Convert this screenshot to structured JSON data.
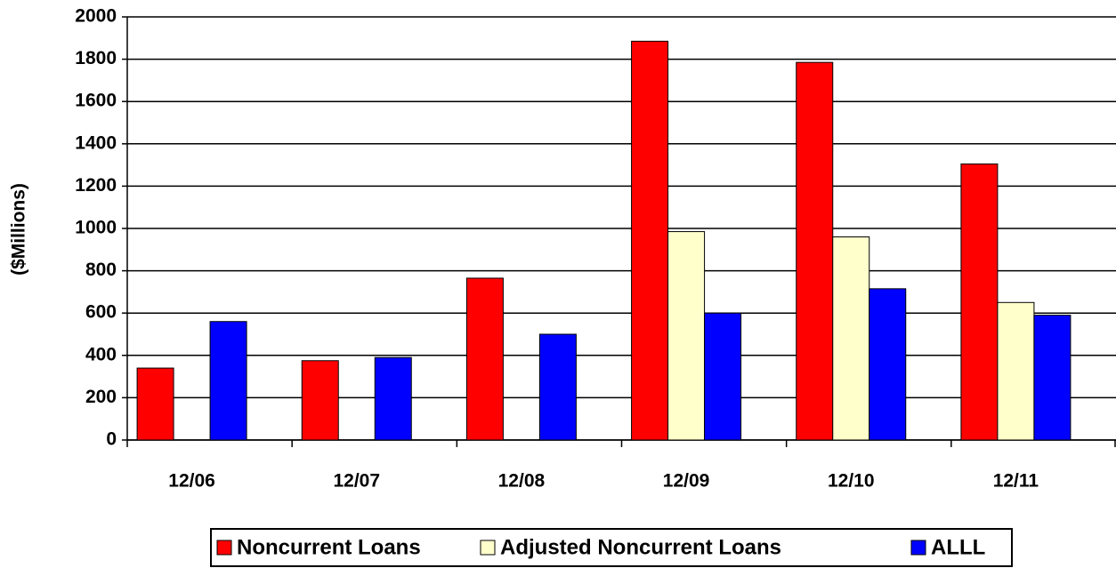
{
  "chart_data": {
    "type": "bar",
    "y_label": "($Millions)",
    "categories": [
      "12/06",
      "12/07",
      "12/08",
      "12/09",
      "12/10",
      "12/11"
    ],
    "series": [
      {
        "name": "Noncurrent Loans",
        "color": "#ff0000",
        "values": [
          340,
          375,
          765,
          1885,
          1785,
          1305
        ]
      },
      {
        "name": "Adjusted Noncurrent Loans",
        "color": "#ffffcc",
        "values": [
          null,
          null,
          null,
          985,
          960,
          650
        ]
      },
      {
        "name": "ALLL",
        "color": "#0000ff",
        "values": [
          560,
          390,
          500,
          600,
          715,
          590
        ]
      }
    ],
    "ylim": [
      0,
      2000
    ],
    "yticks": [
      0,
      200,
      400,
      600,
      800,
      1000,
      1200,
      1400,
      1600,
      1800,
      2000
    ],
    "grid": true
  }
}
